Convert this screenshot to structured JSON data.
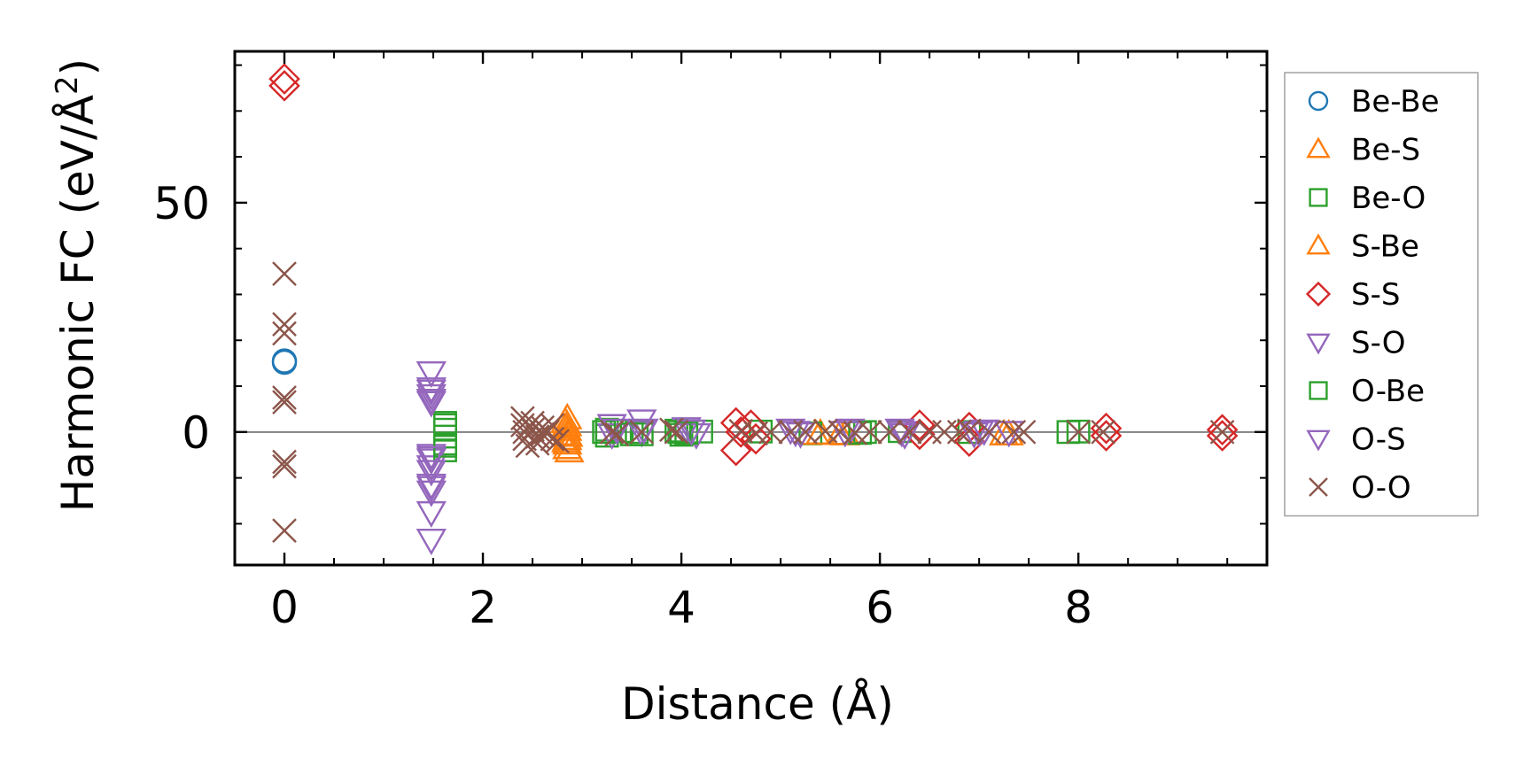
{
  "chart_data": {
    "type": "scatter",
    "xlabel": "Distance (Å)",
    "ylabel_main": "Harmonic FC (eV/Å",
    "ylabel_sup": "2",
    "ylabel_close": ")",
    "xlim": [
      -0.5,
      9.9
    ],
    "ylim": [
      -29,
      83
    ],
    "x_ticks": [
      0,
      2,
      4,
      6,
      8
    ],
    "x_tick_labels": [
      "0",
      "2",
      "4",
      "6",
      "8"
    ],
    "x_minor_ticks": [
      0.5,
      1,
      1.5,
      2.5,
      3,
      3.5,
      4.5,
      5,
      5.5,
      6.5,
      7,
      7.5,
      8.5,
      9,
      9.5
    ],
    "y_ticks": [
      0,
      50
    ],
    "y_tick_labels": [
      "0",
      "50"
    ],
    "y_minor_ticks": [
      -20,
      -10,
      10,
      20,
      30,
      40,
      60,
      70,
      80
    ],
    "zero_line": true,
    "grid": false,
    "legend_position": "outside-right",
    "series": [
      {
        "name": "Be-Be",
        "marker": "circle",
        "color": "#1f77b4",
        "points": [
          [
            0,
            15.5
          ],
          [
            0,
            15.2
          ]
        ]
      },
      {
        "name": "Be-S",
        "marker": "triangle-up",
        "color": "#ff7f0e",
        "points": [
          [
            2.85,
            3
          ],
          [
            2.85,
            1.5
          ],
          [
            2.85,
            0.5
          ],
          [
            2.85,
            -0.5
          ],
          [
            2.85,
            -1.5
          ],
          [
            2.85,
            -2.5
          ],
          [
            2.85,
            -3.5
          ],
          [
            2.87,
            -4.2
          ],
          [
            2.83,
            2.2
          ],
          [
            5.4,
            -0.3
          ],
          [
            5.65,
            -0.5
          ],
          [
            7.25,
            -0.5
          ]
        ]
      },
      {
        "name": "Be-O",
        "marker": "square",
        "color": "#2ca02c",
        "points": [
          [
            1.62,
            2
          ],
          [
            1.62,
            0.5
          ],
          [
            1.62,
            -1
          ],
          [
            1.62,
            -2.5
          ],
          [
            1.62,
            -4
          ],
          [
            3.25,
            0.5
          ],
          [
            3.25,
            -0.8
          ],
          [
            3.4,
            0.2
          ],
          [
            3.55,
            0
          ],
          [
            3.6,
            -0.5
          ],
          [
            3.95,
            0.3
          ],
          [
            4.0,
            -0.6
          ],
          [
            4.2,
            0.1
          ],
          [
            4.8,
            0.1
          ],
          [
            5.3,
            -0.3
          ],
          [
            5.85,
            0
          ],
          [
            6.2,
            0.2
          ],
          [
            6.9,
            0
          ],
          [
            7.9,
            0
          ]
        ]
      },
      {
        "name": "S-Be",
        "marker": "triangle-up",
        "color": "#ff7f0e",
        "points": [
          [
            2.83,
            1
          ],
          [
            2.86,
            -0.8
          ],
          [
            2.84,
            -2.0
          ],
          [
            5.35,
            -0.4
          ],
          [
            5.6,
            -0.4
          ],
          [
            7.3,
            -0.5
          ]
        ]
      },
      {
        "name": "S-S",
        "marker": "diamond",
        "color": "#d62728",
        "points": [
          [
            0,
            77
          ],
          [
            0,
            75.5
          ],
          [
            4.55,
            2
          ],
          [
            4.55,
            -4
          ],
          [
            4.6,
            0
          ],
          [
            4.7,
            1.5
          ],
          [
            4.75,
            -1.5
          ],
          [
            6.4,
            1.5
          ],
          [
            6.4,
            -0.5
          ],
          [
            6.9,
            -2
          ],
          [
            6.9,
            1
          ],
          [
            8.28,
            0.8
          ],
          [
            8.28,
            -0.8
          ],
          [
            9.45,
            0.5
          ],
          [
            9.45,
            -0.8
          ]
        ]
      },
      {
        "name": "S-O",
        "marker": "triangle-down",
        "color": "#9467bd",
        "points": [
          [
            1.48,
            13
          ],
          [
            1.48,
            9
          ],
          [
            1.48,
            8
          ],
          [
            1.48,
            6.5
          ],
          [
            1.48,
            -5
          ],
          [
            1.48,
            -6
          ],
          [
            1.48,
            -7.5
          ],
          [
            1.48,
            -8.5
          ],
          [
            1.48,
            -12
          ],
          [
            1.48,
            -13
          ],
          [
            1.48,
            -17.5
          ],
          [
            1.48,
            -23.5
          ],
          [
            3.3,
            1.5
          ],
          [
            3.3,
            -0.5
          ],
          [
            3.6,
            2.5
          ],
          [
            3.6,
            0
          ],
          [
            4.05,
            0.8
          ],
          [
            4.15,
            -0.5
          ],
          [
            5.1,
            0.5
          ],
          [
            5.2,
            -0.3
          ],
          [
            5.7,
            0.5
          ],
          [
            6.2,
            0.5
          ],
          [
            6.25,
            -0.5
          ],
          [
            6.95,
            -0.3
          ],
          [
            7.05,
            0.3
          ]
        ]
      },
      {
        "name": "O-Be",
        "marker": "square",
        "color": "#2ca02c",
        "points": [
          [
            1.62,
            1.5
          ],
          [
            1.62,
            -3
          ],
          [
            3.22,
            0
          ],
          [
            3.5,
            -0.5
          ],
          [
            3.98,
            0
          ],
          [
            4.05,
            -0.2
          ],
          [
            5.8,
            -0.2
          ],
          [
            8.0,
            0.1
          ]
        ]
      },
      {
        "name": "O-S",
        "marker": "triangle-down",
        "color": "#9467bd",
        "points": [
          [
            1.48,
            9.5
          ],
          [
            1.48,
            7
          ],
          [
            1.48,
            -5.5
          ],
          [
            1.48,
            -11.5
          ],
          [
            3.35,
            0.5
          ],
          [
            3.62,
            0.5
          ],
          [
            4.1,
            0.3
          ],
          [
            5.15,
            0
          ],
          [
            5.65,
            0
          ],
          [
            6.22,
            0
          ],
          [
            7.0,
            0
          ],
          [
            7.3,
            0
          ]
        ]
      },
      {
        "name": "O-O",
        "marker": "x",
        "color": "#8c564b",
        "points": [
          [
            0,
            34.5
          ],
          [
            0,
            23.5
          ],
          [
            0,
            21.5
          ],
          [
            0,
            7.5
          ],
          [
            0,
            6.5
          ],
          [
            0,
            -6.5
          ],
          [
            0,
            -7.5
          ],
          [
            0,
            -21.5
          ],
          [
            2.4,
            3
          ],
          [
            2.4,
            1.5
          ],
          [
            2.42,
            0
          ],
          [
            2.42,
            -1.5
          ],
          [
            2.45,
            -3
          ],
          [
            2.5,
            2
          ],
          [
            2.5,
            0.5
          ],
          [
            2.55,
            -1
          ],
          [
            2.55,
            -2.5
          ],
          [
            2.6,
            1
          ],
          [
            2.6,
            -0.5
          ],
          [
            2.65,
            0
          ],
          [
            2.7,
            1.5
          ],
          [
            2.7,
            -1.5
          ],
          [
            2.75,
            -2
          ],
          [
            3.3,
            0
          ],
          [
            3.35,
            -0.5
          ],
          [
            3.6,
            0
          ],
          [
            3.9,
            0.5
          ],
          [
            3.95,
            0
          ],
          [
            4.6,
            0.2
          ],
          [
            4.75,
            -0.3
          ],
          [
            4.9,
            0
          ],
          [
            5.1,
            0
          ],
          [
            5.25,
            0
          ],
          [
            5.45,
            0.2
          ],
          [
            5.6,
            0
          ],
          [
            5.75,
            -0.2
          ],
          [
            5.9,
            0
          ],
          [
            6.1,
            0
          ],
          [
            6.3,
            0
          ],
          [
            6.5,
            0
          ],
          [
            6.65,
            0
          ],
          [
            6.8,
            0
          ],
          [
            6.9,
            0.3
          ],
          [
            7.1,
            0
          ],
          [
            7.35,
            0
          ],
          [
            7.45,
            0
          ],
          [
            8.0,
            0
          ],
          [
            8.25,
            0
          ],
          [
            9.45,
            0
          ]
        ]
      }
    ]
  }
}
